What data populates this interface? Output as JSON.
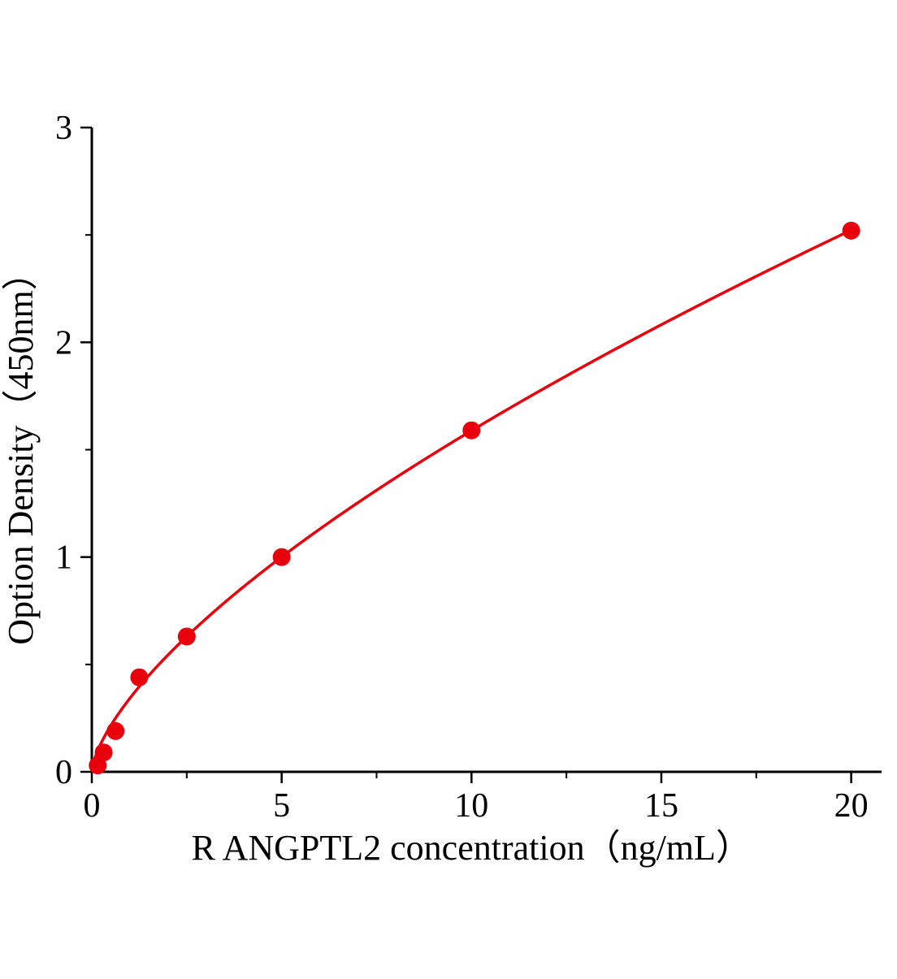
{
  "chart_data": {
    "type": "scatter",
    "title": "",
    "xlabel": "R ANGPTL2 concentration（ng/mL）",
    "ylabel": "Option Density（450nm）",
    "x": [
      0.156,
      0.312,
      0.625,
      1.25,
      2.5,
      5,
      10,
      20
    ],
    "y": [
      0.03,
      0.09,
      0.19,
      0.44,
      0.63,
      1.0,
      1.59,
      2.52
    ],
    "xlim": [
      0,
      20.8
    ],
    "ylim": [
      0,
      3
    ],
    "x_ticks": [
      0,
      5,
      10,
      15,
      20
    ],
    "y_ticks": [
      0,
      1,
      2,
      3
    ],
    "x_minor_ticks": [
      2.5,
      7.5,
      12.5,
      17.5
    ],
    "y_minor_ticks": [
      0.5,
      1.5,
      2.5
    ],
    "grid": false,
    "legend": "none",
    "line_color": "#e8000d",
    "point_color": "#e8000d",
    "axis_color": "#000000",
    "fit": {
      "type": "power",
      "a": 0.342,
      "b": 0.667
    }
  }
}
